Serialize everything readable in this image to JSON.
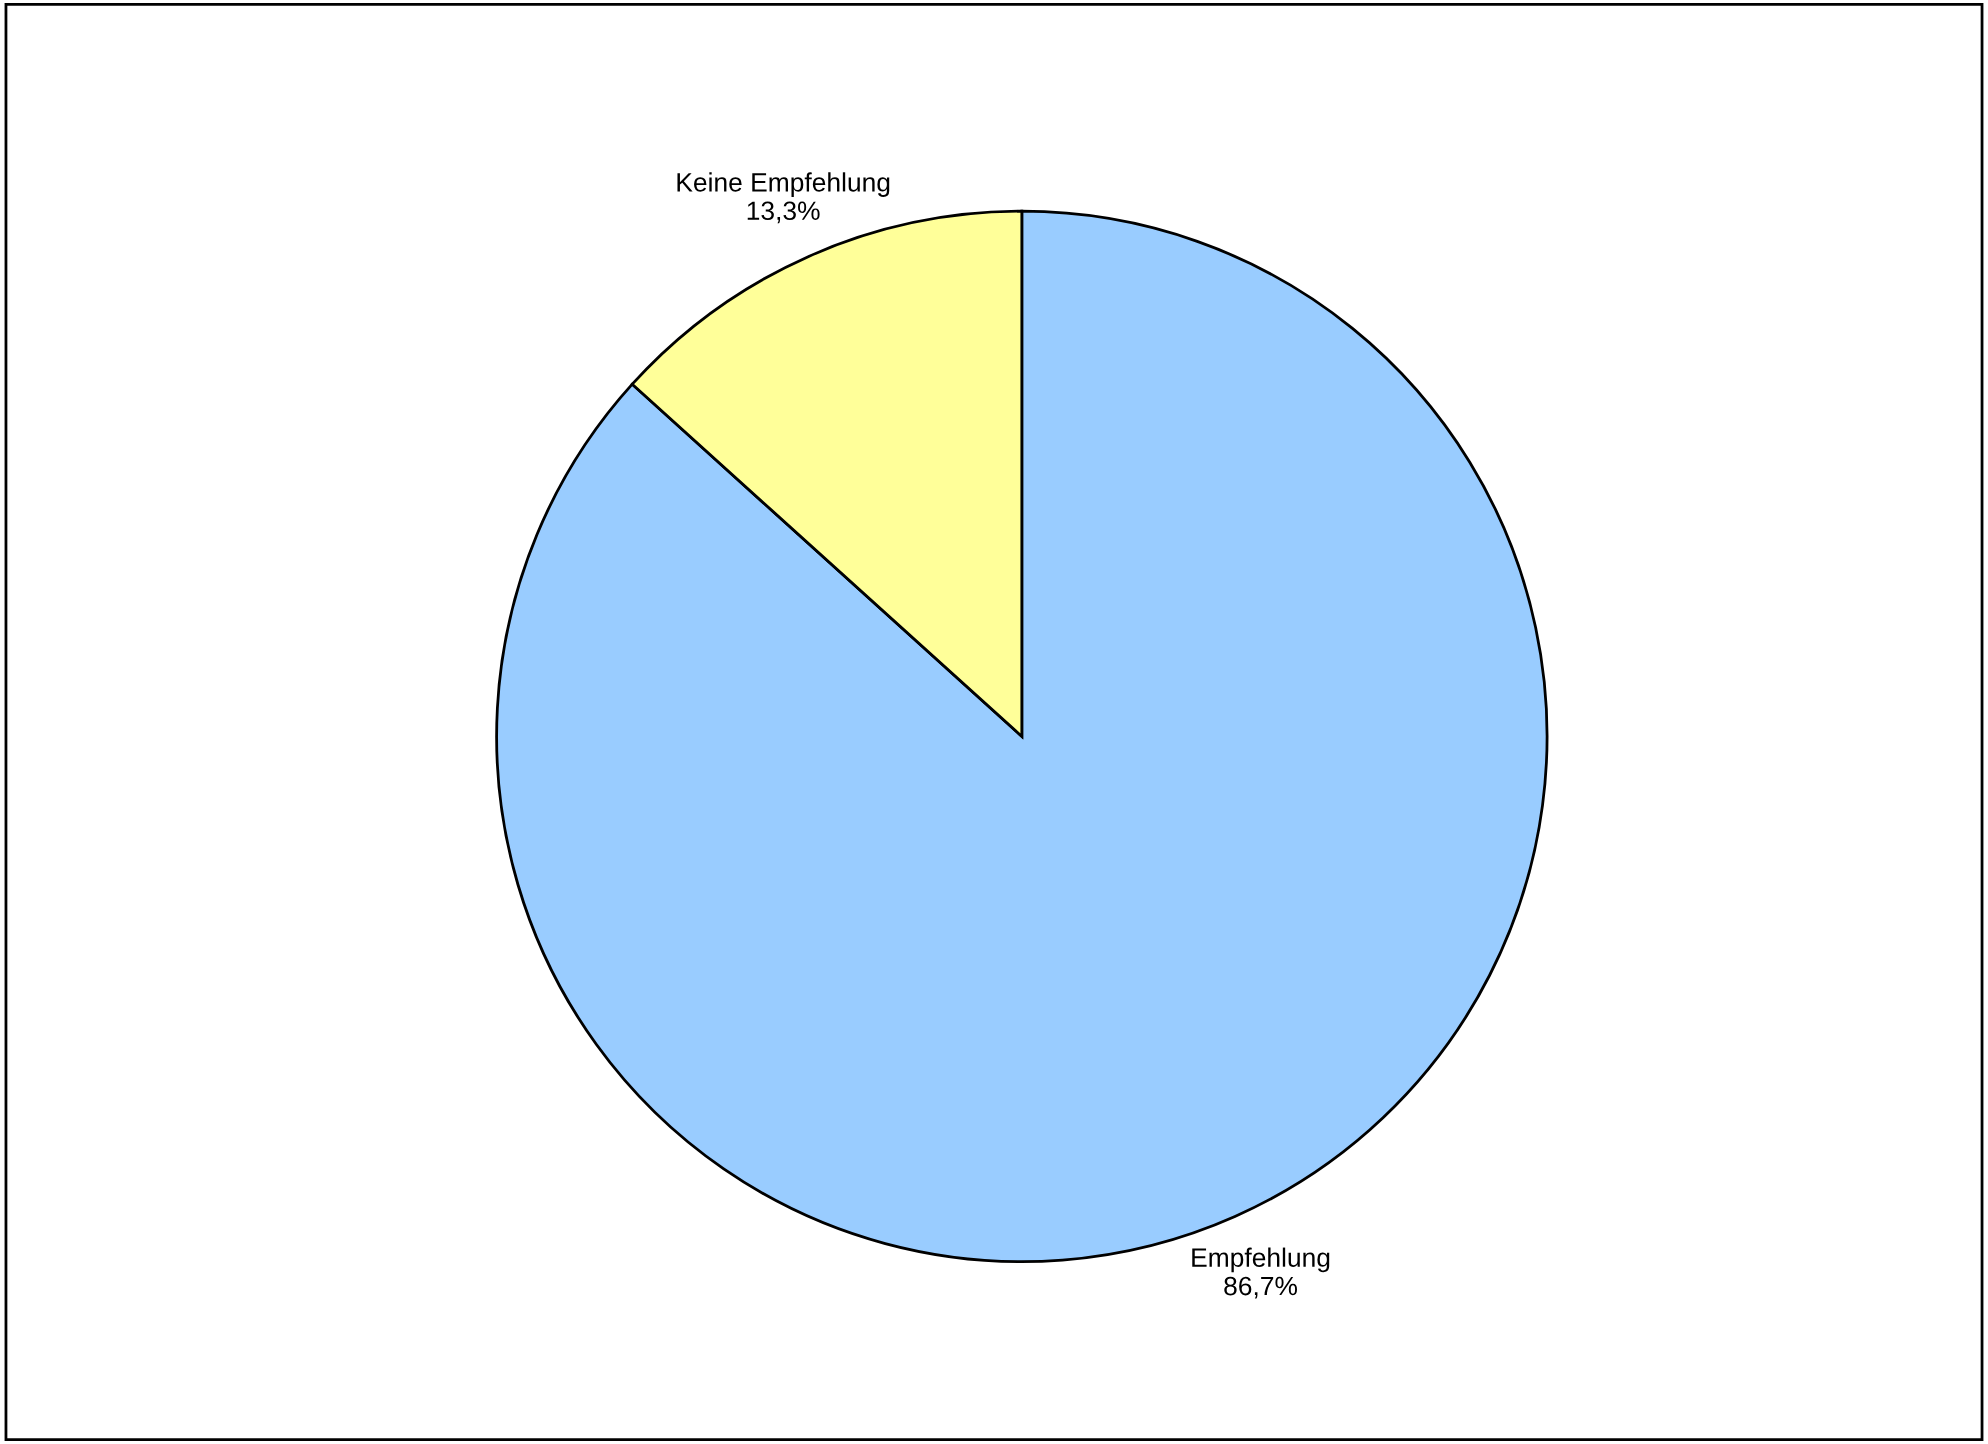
{
  "chart_data": {
    "type": "pie",
    "categories": [
      "Empfehlung",
      "Keine Empfehlung"
    ],
    "values": [
      86.7,
      13.3
    ],
    "colors": [
      "#99ccff",
      "#ffff99"
    ],
    "value_labels": [
      "86,7%",
      "13,3%"
    ],
    "legend": false
  }
}
